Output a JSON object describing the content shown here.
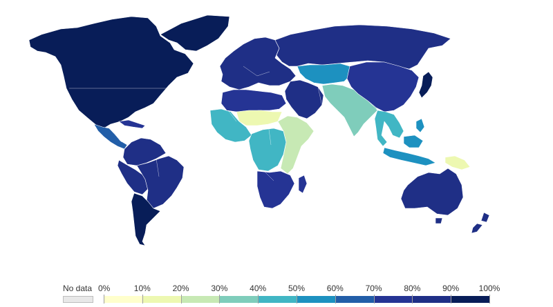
{
  "map": {
    "type": "choropleth",
    "projection": "world",
    "regions": [
      {
        "id": "greenland",
        "value": 90
      },
      {
        "id": "north-america",
        "value": 92
      },
      {
        "id": "central-america",
        "value": 68
      },
      {
        "id": "caribbean",
        "value": 75
      },
      {
        "id": "south-america-north",
        "value": 85
      },
      {
        "id": "brazil",
        "value": 88
      },
      {
        "id": "andes",
        "value": 82
      },
      {
        "id": "southern-cone",
        "value": 95
      },
      {
        "id": "europe",
        "value": 88
      },
      {
        "id": "russia",
        "value": 86
      },
      {
        "id": "central-asia",
        "value": 52
      },
      {
        "id": "china",
        "value": 72
      },
      {
        "id": "japan",
        "value": 96
      },
      {
        "id": "middle-east",
        "value": 88
      },
      {
        "id": "north-africa",
        "value": 72
      },
      {
        "id": "west-africa",
        "value": 42
      },
      {
        "id": "sahel",
        "value": 12
      },
      {
        "id": "central-africa",
        "value": 48
      },
      {
        "id": "east-africa",
        "value": 26
      },
      {
        "id": "southern-africa",
        "value": 72
      },
      {
        "id": "south-asia",
        "value": 35
      },
      {
        "id": "southeast-asia",
        "value": 48
      },
      {
        "id": "indonesia",
        "value": 52
      },
      {
        "id": "papua-new-guinea",
        "value": 14
      },
      {
        "id": "australia",
        "value": 88
      },
      {
        "id": "new-zealand",
        "value": 86
      }
    ]
  },
  "legend": {
    "no_data_label": "No data",
    "no_data_color": "#e8e8e8",
    "ticks": [
      "0%",
      "10%",
      "20%",
      "30%",
      "40%",
      "50%",
      "60%",
      "70%",
      "80%",
      "90%",
      "100%"
    ],
    "colors": [
      "#ffffcc",
      "#edf8b1",
      "#c7e9b4",
      "#7fcdbb",
      "#41b6c4",
      "#1d91c0",
      "#225ea8",
      "#253494",
      "#1f2f86",
      "#081d58"
    ]
  }
}
